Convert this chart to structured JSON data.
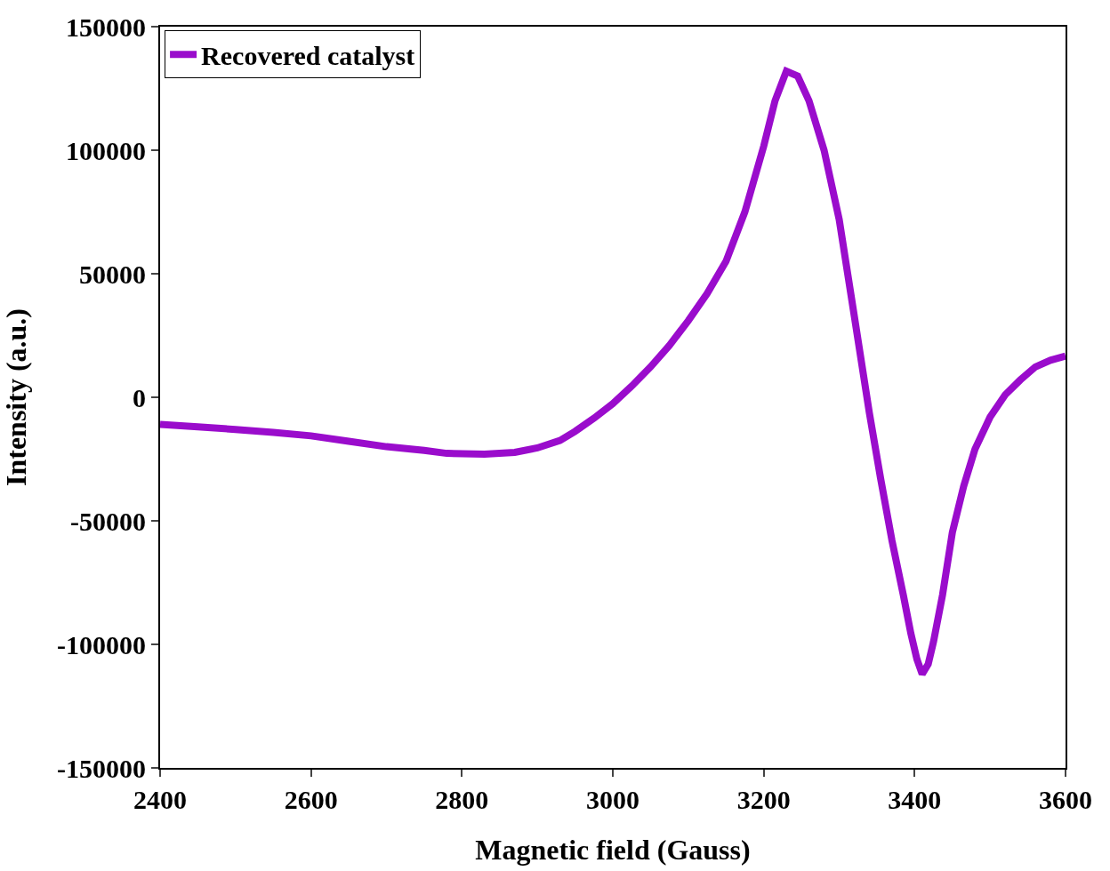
{
  "chart_data": {
    "type": "line",
    "xlabel": "Magnetic field (Gauss)",
    "ylabel": "Intensity (a.u.)",
    "x": [
      2400,
      2450,
      2500,
      2550,
      2600,
      2650,
      2700,
      2750,
      2780,
      2830,
      2870,
      2900,
      2930,
      2950,
      2975,
      3000,
      3025,
      3050,
      3075,
      3100,
      3125,
      3150,
      3175,
      3200,
      3215,
      3230,
      3245,
      3260,
      3280,
      3300,
      3320,
      3340,
      3355,
      3370,
      3385,
      3395,
      3403,
      3410,
      3418,
      3425,
      3437,
      3450,
      3465,
      3480,
      3500,
      3520,
      3540,
      3560,
      3580,
      3600
    ],
    "series": [
      {
        "name": "Recovered catalyst",
        "color": "#9a0ccc",
        "values": [
          -11000,
          -12000,
          -13000,
          -14200,
          -15600,
          -17800,
          -20000,
          -21500,
          -22700,
          -23000,
          -22300,
          -20500,
          -17500,
          -13800,
          -8500,
          -2600,
          4500,
          12300,
          21000,
          31000,
          42000,
          55000,
          75000,
          101600,
          120000,
          132000,
          130000,
          120000,
          100000,
          72000,
          33000,
          -6300,
          -33000,
          -58000,
          -80000,
          -95600,
          -106000,
          -112000,
          -108000,
          -99000,
          -80000,
          -54700,
          -36000,
          -21000,
          -8000,
          1000,
          7000,
          12300,
          15000,
          16700
        ]
      }
    ],
    "xlim": [
      2400,
      3600
    ],
    "xticks": [
      2400,
      2600,
      2800,
      3000,
      3200,
      3400,
      3600
    ],
    "ylim": [
      -150000,
      150000
    ],
    "yticks": [
      -150000,
      -100000,
      -50000,
      0,
      50000,
      100000,
      150000
    ],
    "grid": false,
    "legend": "top left",
    "marker": "none",
    "line_style": "solid"
  }
}
